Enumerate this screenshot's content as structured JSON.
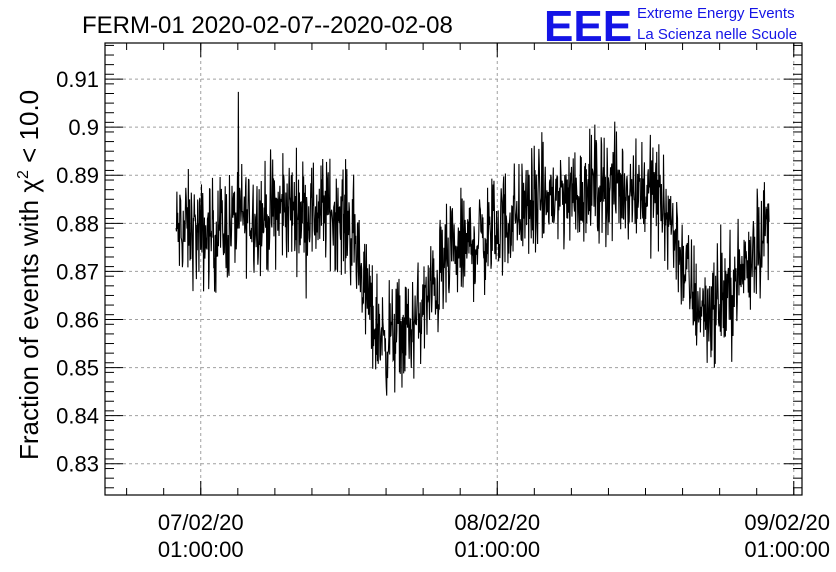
{
  "chart_data": {
    "type": "line",
    "title": "FERM-01 2020-02-07--2020-02-08",
    "ylabel_main": "Fraction of events with ",
    "ylabel_symbol": "χ",
    "ylabel_sup": "2",
    "ylabel_tail": " < 10.0",
    "xlabel": "",
    "x_ticks": [
      {
        "date": "07/02/20",
        "time": "01:00:00"
      },
      {
        "date": "08/02/20",
        "time": "01:00:00"
      },
      {
        "date": "09/02/20",
        "time": "01:00:00"
      }
    ],
    "y_ticks": [
      "0.83",
      "0.84",
      "0.85",
      "0.86",
      "0.87",
      "0.88",
      "0.89",
      "0.9",
      "0.91"
    ],
    "ylim": [
      0.8235,
      0.9175
    ],
    "xlim": [
      "2020-02-06T17:15",
      "2020-02-09T01:40"
    ],
    "grid": true,
    "line_color": "#000000",
    "series": [
      {
        "x": [
          "2020-02-06T23:00",
          "2020-02-07T00:00",
          "2020-02-07T01:00",
          "2020-02-07T02:00",
          "2020-02-07T03:00",
          "2020-02-07T04:00",
          "2020-02-07T05:00",
          "2020-02-07T06:00",
          "2020-02-07T07:00",
          "2020-02-07T08:00",
          "2020-02-07T09:00",
          "2020-02-07T10:00",
          "2020-02-07T11:00",
          "2020-02-07T12:00",
          "2020-02-07T13:00",
          "2020-02-07T14:00",
          "2020-02-07T15:00",
          "2020-02-07T16:00",
          "2020-02-07T17:00",
          "2020-02-07T18:00",
          "2020-02-07T19:00",
          "2020-02-07T20:00",
          "2020-02-07T21:00",
          "2020-02-07T22:00",
          "2020-02-07T23:00",
          "2020-02-08T00:00",
          "2020-02-08T01:00",
          "2020-02-08T02:00",
          "2020-02-08T03:00",
          "2020-02-08T04:00",
          "2020-02-08T05:00",
          "2020-02-08T06:00",
          "2020-02-08T07:00",
          "2020-02-08T08:00",
          "2020-02-08T09:00",
          "2020-02-08T10:00",
          "2020-02-08T11:00",
          "2020-02-08T12:00",
          "2020-02-08T13:00",
          "2020-02-08T14:00",
          "2020-02-08T15:00",
          "2020-02-08T16:00",
          "2020-02-08T17:00",
          "2020-02-08T18:00",
          "2020-02-08T19:00",
          "2020-02-08T20:00",
          "2020-02-08T21:00",
          "2020-02-08T22:00",
          "2020-02-08T23:00"
        ],
        "values": [
          0.878,
          0.879,
          0.877,
          0.878,
          0.879,
          0.881,
          0.882,
          0.881,
          0.882,
          0.883,
          0.883,
          0.882,
          0.883,
          0.882,
          0.88,
          0.87,
          0.859,
          0.856,
          0.857,
          0.858,
          0.862,
          0.867,
          0.872,
          0.874,
          0.876,
          0.877,
          0.879,
          0.881,
          0.883,
          0.884,
          0.885,
          0.886,
          0.886,
          0.887,
          0.888,
          0.888,
          0.887,
          0.888,
          0.887,
          0.886,
          0.881,
          0.872,
          0.864,
          0.862,
          0.863,
          0.866,
          0.871,
          0.876,
          0.88
        ],
        "noise": 0.0055
      }
    ]
  },
  "logo": {
    "mark": "EEE",
    "line1": "Extreme Energy Events",
    "line2": "La Scienza nelle Scuole",
    "color": "#1414e6"
  }
}
